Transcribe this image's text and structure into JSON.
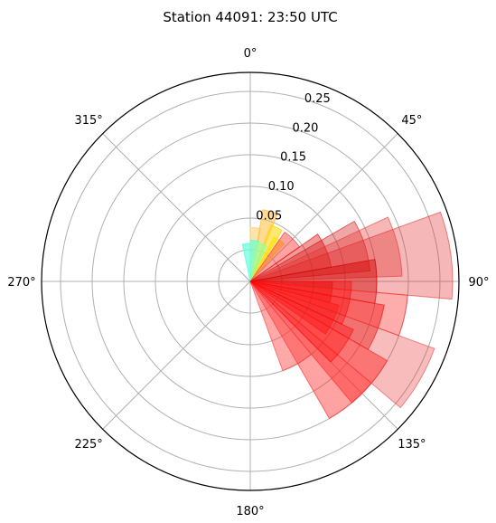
{
  "chart_data": {
    "type": "polar-bar",
    "title": "Station 44091: 23:50 UTC",
    "theta_direction": "clockwise",
    "theta_zero": "north",
    "angle_ticks": [
      "0°",
      "45°",
      "90°",
      "135°",
      "180°",
      "225°",
      "270°",
      "315°"
    ],
    "angle_tick_values": [
      0,
      45,
      90,
      135,
      180,
      225,
      270,
      315
    ],
    "radial_ticks": [
      "0.05",
      "0.10",
      "0.15",
      "0.20",
      "0.25"
    ],
    "radial_tick_values": [
      0.05,
      0.1,
      0.15,
      0.2,
      0.25
    ],
    "rlim": [
      -0.05,
      0.28
    ],
    "grid": true,
    "bars": [
      {
        "start": 0,
        "end": 11,
        "value": 0.035,
        "color": "#ffd066",
        "alpha": 0.55
      },
      {
        "start": 10,
        "end": 22,
        "value": 0.065,
        "color": "#ffc040",
        "alpha": 0.55
      },
      {
        "start": 20,
        "end": 32,
        "value": 0.045,
        "color": "#ffd700",
        "alpha": 0.55
      },
      {
        "start": 28,
        "end": 42,
        "value": 0.03,
        "color": "#ffe000",
        "alpha": 0.55
      },
      {
        "start": 0,
        "end": 12,
        "value": 0.015,
        "color": "#66ffcc",
        "alpha": 0.7
      },
      {
        "start": 10,
        "end": 25,
        "value": 0.012,
        "color": "#99ff99",
        "alpha": 0.7
      },
      {
        "start": 348,
        "end": 360,
        "value": 0.01,
        "color": "#66ffdd",
        "alpha": 0.7
      },
      {
        "start": 35,
        "end": 55,
        "value": 0.045,
        "color": "#ff3030",
        "alpha": 0.45
      },
      {
        "start": 55,
        "end": 80,
        "value": 0.08,
        "color": "#e00000",
        "alpha": 0.4
      },
      {
        "start": 60,
        "end": 85,
        "value": 0.14,
        "color": "#d00000",
        "alpha": 0.35
      },
      {
        "start": 65,
        "end": 88,
        "value": 0.19,
        "color": "#e83030",
        "alpha": 0.35
      },
      {
        "start": 70,
        "end": 95,
        "value": 0.27,
        "color": "#e02020",
        "alpha": 0.32
      },
      {
        "start": 80,
        "end": 100,
        "value": 0.15,
        "color": "#d00000",
        "alpha": 0.45
      },
      {
        "start": 90,
        "end": 105,
        "value": 0.08,
        "color": "#e01010",
        "alpha": 0.45
      },
      {
        "start": 95,
        "end": 110,
        "value": 0.2,
        "color": "#ff3030",
        "alpha": 0.4
      },
      {
        "start": 100,
        "end": 120,
        "value": 0.165,
        "color": "#ee1010",
        "alpha": 0.45
      },
      {
        "start": 105,
        "end": 125,
        "value": 0.095,
        "color": "#ff2020",
        "alpha": 0.45
      },
      {
        "start": 110,
        "end": 130,
        "value": 0.26,
        "color": "#e83030",
        "alpha": 0.32
      },
      {
        "start": 120,
        "end": 140,
        "value": 0.2,
        "color": "#ff2020",
        "alpha": 0.45
      },
      {
        "start": 130,
        "end": 150,
        "value": 0.2,
        "color": "#ff3030",
        "alpha": 0.45
      },
      {
        "start": 140,
        "end": 160,
        "value": 0.1,
        "color": "#ff4040",
        "alpha": 0.45
      },
      {
        "start": 90,
        "end": 115,
        "value": 0.11,
        "color": "#ff0000",
        "alpha": 0.35
      },
      {
        "start": 115,
        "end": 135,
        "value": 0.13,
        "color": "#ff0000",
        "alpha": 0.35
      }
    ]
  }
}
